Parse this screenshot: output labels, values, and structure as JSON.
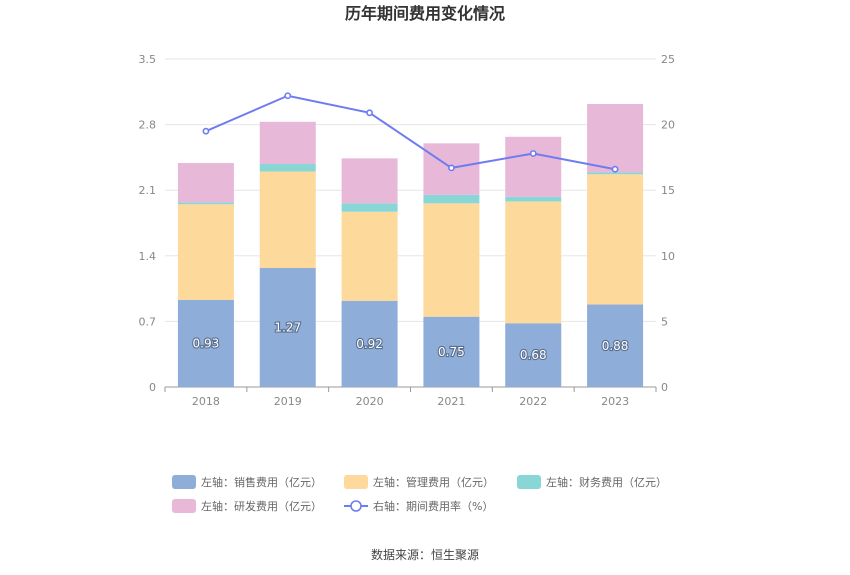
{
  "chart_data": {
    "type": "bar",
    "title": "历年期间费用变化情况",
    "categories": [
      "2018",
      "2019",
      "2020",
      "2021",
      "2022",
      "2023"
    ],
    "ylim_left": [
      0,
      3.5
    ],
    "ylim_right": [
      0,
      25
    ],
    "left_ticks": [
      "0",
      "0.7",
      "1.4",
      "2.1",
      "2.8",
      "3.5"
    ],
    "right_ticks": [
      "0",
      "5",
      "10",
      "15",
      "20",
      "25"
    ],
    "series": [
      {
        "name": "左轴：销售费用（亿元）",
        "kind": "bar",
        "axis": "left",
        "color": "#8eadd9",
        "values": [
          0.93,
          1.27,
          0.92,
          0.75,
          0.68,
          0.88
        ],
        "labels": [
          "0.93",
          "1.27",
          "0.92",
          "0.75",
          "0.68",
          "0.88"
        ]
      },
      {
        "name": "左轴：管理费用（亿元）",
        "kind": "bar",
        "axis": "left",
        "color": "#fdd99b",
        "values": [
          1.02,
          1.03,
          0.95,
          1.21,
          1.3,
          1.39
        ]
      },
      {
        "name": "左轴：财务费用（亿元）",
        "kind": "bar",
        "axis": "left",
        "color": "#88d6d6",
        "values": [
          0.02,
          0.08,
          0.09,
          0.09,
          0.05,
          0.02
        ]
      },
      {
        "name": "左轴：研发费用（亿元）",
        "kind": "bar",
        "axis": "left",
        "color": "#e8b8d9",
        "values": [
          0.42,
          0.45,
          0.48,
          0.55,
          0.64,
          0.73
        ]
      },
      {
        "name": "右轴：期间费用率（%）",
        "kind": "line",
        "axis": "right",
        "color": "#6e7cf0",
        "values": [
          19.5,
          22.2,
          20.9,
          16.7,
          17.8,
          16.6
        ]
      }
    ],
    "legend_position": "bottom",
    "grid": true
  },
  "source_text": "数据来源：恒生聚源"
}
